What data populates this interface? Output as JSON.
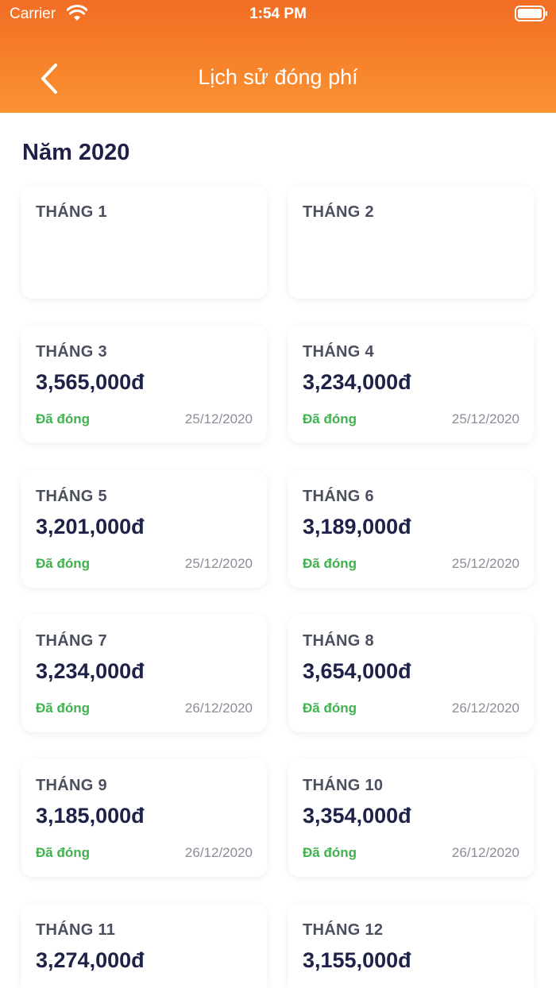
{
  "status_bar": {
    "carrier": "Carrier",
    "time": "1:54 PM"
  },
  "nav": {
    "title": "Lịch sử đóng phí",
    "back_icon": "chevron-left-icon"
  },
  "year_title": "Năm 2020",
  "colors": {
    "header_start": "#f16d24",
    "header_end": "#fa9232",
    "paid_status": "#3fb24d",
    "amount_text": "#1e2148"
  },
  "months": [
    {
      "label": "THÁNG 1",
      "amount": "",
      "status": "",
      "date": ""
    },
    {
      "label": "THÁNG 2",
      "amount": "",
      "status": "",
      "date": ""
    },
    {
      "label": "THÁNG 3",
      "amount": "3,565,000đ",
      "status": "Đã đóng",
      "date": "25/12/2020"
    },
    {
      "label": "THÁNG 4",
      "amount": "3,234,000đ",
      "status": "Đã đóng",
      "date": "25/12/2020"
    },
    {
      "label": "THÁNG 5",
      "amount": "3,201,000đ",
      "status": "Đã đóng",
      "date": "25/12/2020"
    },
    {
      "label": "THÁNG 6",
      "amount": "3,189,000đ",
      "status": "Đã đóng",
      "date": "25/12/2020"
    },
    {
      "label": "THÁNG 7",
      "amount": "3,234,000đ",
      "status": "Đã đóng",
      "date": "26/12/2020"
    },
    {
      "label": "THÁNG 8",
      "amount": "3,654,000đ",
      "status": "Đã đóng",
      "date": "26/12/2020"
    },
    {
      "label": "THÁNG 9",
      "amount": "3,185,000đ",
      "status": "Đã đóng",
      "date": "26/12/2020"
    },
    {
      "label": "THÁNG 10",
      "amount": "3,354,000đ",
      "status": "Đã đóng",
      "date": "26/12/2020"
    },
    {
      "label": "THÁNG 11",
      "amount": "3,274,000đ",
      "status": "",
      "date": ""
    },
    {
      "label": "THÁNG 12",
      "amount": "3,155,000đ",
      "status": "",
      "date": ""
    }
  ]
}
